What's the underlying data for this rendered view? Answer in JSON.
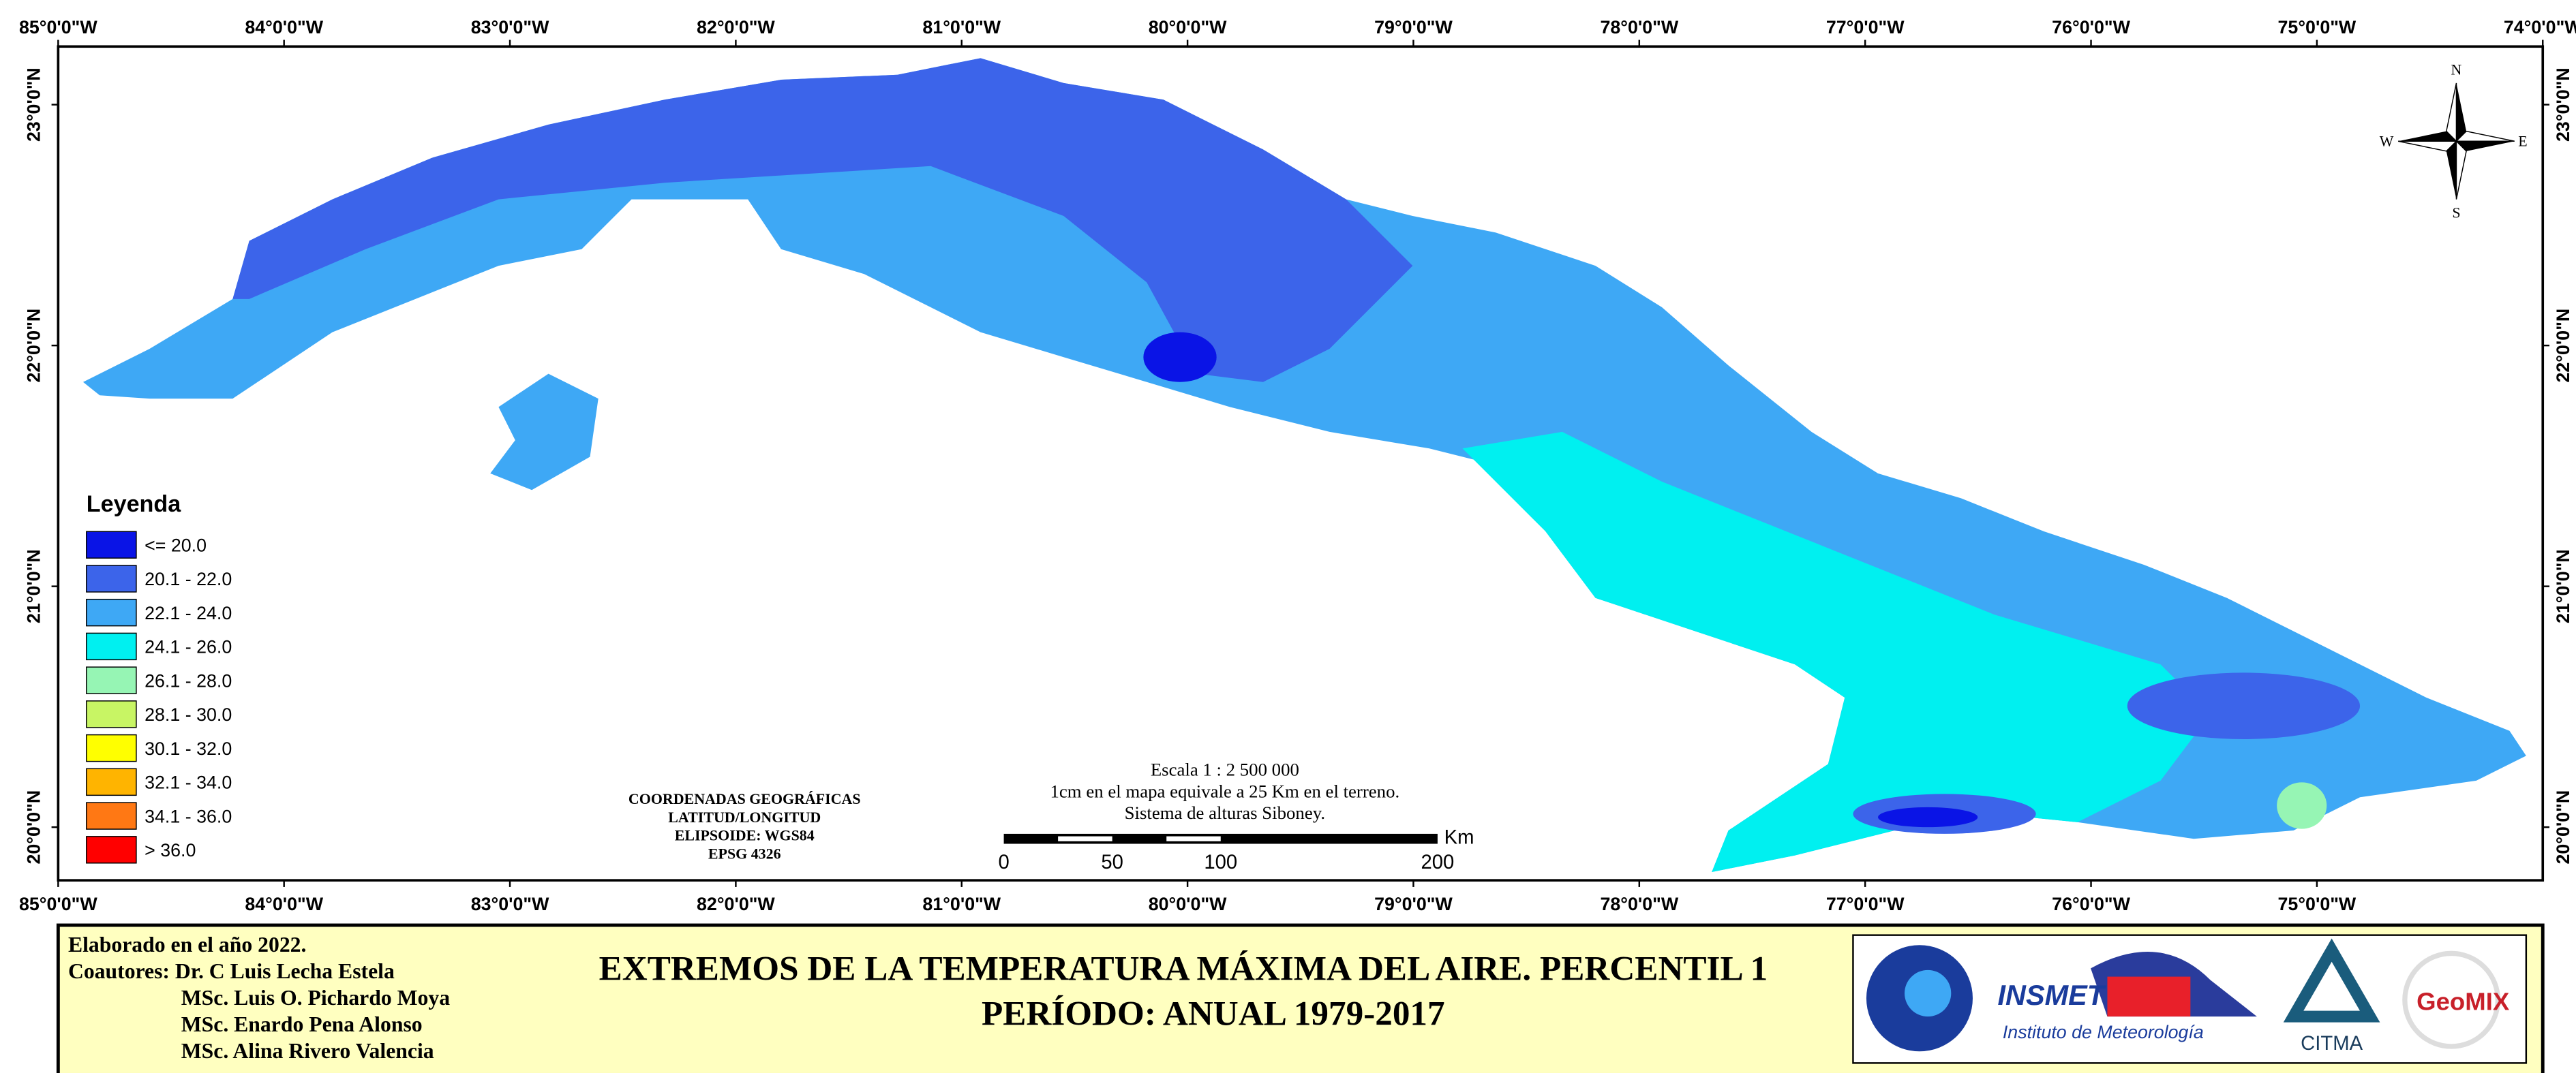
{
  "map": {
    "lon_labels": [
      "85°0'0\"W",
      "84°0'0\"W",
      "83°0'0\"W",
      "82°0'0\"W",
      "81°0'0\"W",
      "80°0'0\"W",
      "79°0'0\"W",
      "78°0'0\"W",
      "77°0'0\"W",
      "76°0'0\"W",
      "75°0'0\"W",
      "74°0'0\"W"
    ],
    "lat_labels": [
      "23°0'0\"N",
      "22°0'0\"N",
      "21°0'0\"N",
      "20°0'0\"N"
    ],
    "compass": {
      "n": "N",
      "s": "S",
      "e": "E",
      "w": "W"
    },
    "legend": {
      "title": "Leyenda",
      "items": [
        {
          "label": "<= 20.0",
          "color": "#0a14e6"
        },
        {
          "label": "20.1 - 22.0",
          "color": "#3c64ea"
        },
        {
          "label": "22.1 - 24.0",
          "color": "#3ea8f5"
        },
        {
          "label": "24.1 - 26.0",
          "color": "#00f0f0"
        },
        {
          "label": "26.1 - 28.0",
          "color": "#96f5b4"
        },
        {
          "label": "28.1 - 30.0",
          "color": "#c8f564"
        },
        {
          "label": "30.1 - 32.0",
          "color": "#ffff00"
        },
        {
          "label": "32.1 - 34.0",
          "color": "#ffb400"
        },
        {
          "label": "34.1 - 36.0",
          "color": "#ff7814"
        },
        {
          "label": "> 36.0",
          "color": "#ff0000"
        }
      ]
    },
    "coords": [
      "COORDENADAS GEOGRÁFICAS",
      "LATITUD/LONGITUD",
      "ELIPSOIDE: WGS84",
      "EPSG 4326"
    ],
    "scale": {
      "lines": [
        "Escala 1 : 2 500 000",
        "1cm en el mapa equivale a 25 Km en el terreno.",
        "Sistema de alturas Siboney."
      ],
      "ticks": [
        0,
        50,
        100,
        200
      ],
      "unit": "Km"
    }
  },
  "footer": {
    "credits": [
      "Elaborado en el año 2022.",
      "Coautores: Dr. C Luis Lecha Estela",
      "MSc. Luis O. Pichardo Moya",
      "MSc. Enardo Pena Alonso",
      "MSc. Alina Rivero Valencia"
    ],
    "title": [
      "EXTREMOS DE LA TEMPERATURA MÁXIMA DEL AIRE. PERCENTIL 1",
      "PERÍODO: ANUAL 1979-2017"
    ],
    "logos": {
      "insmet": "INSMET",
      "insmet_sub": "Instituto de Meteorología",
      "citma": "CITMA",
      "geomix": "GeoMIX"
    }
  }
}
